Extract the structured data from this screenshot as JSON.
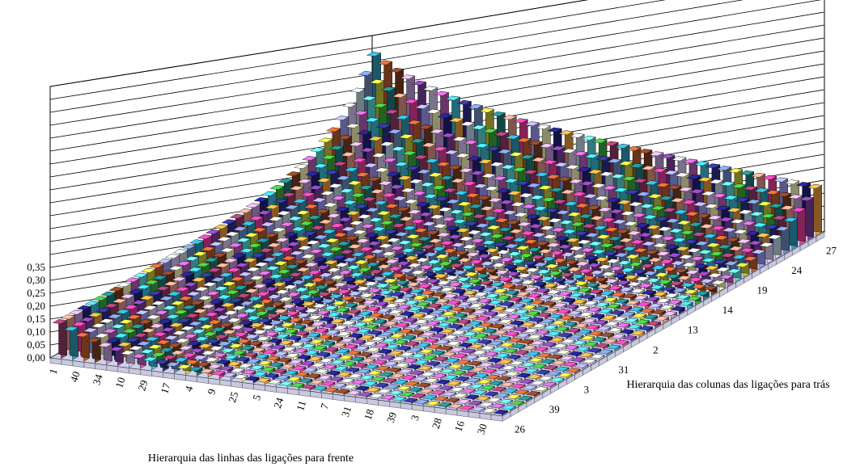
{
  "chart_data": {
    "type": "bar",
    "subtype": "3d-bar-grid",
    "title": "",
    "xlabel": "Hierarquia das linhas das ligações para  frente",
    "ylabel": "Hierarquia das colunas das ligações para trás",
    "zlabel": "",
    "zlim": [
      0,
      0.35
    ],
    "z_ticks": [
      "0,00",
      "0,05",
      "0,10",
      "0,15",
      "0,20",
      "0,25",
      "0,30",
      "0,35"
    ],
    "row_tick_labels": [
      "1",
      "40",
      "34",
      "10",
      "29",
      "17",
      "4",
      "9",
      "25",
      "5",
      "24",
      "11",
      "7",
      "31",
      "18",
      "39",
      "3",
      "28",
      "16",
      "30"
    ],
    "column_tick_labels": [
      "27",
      "24",
      "19",
      "14",
      "13",
      "2",
      "31",
      "3",
      "39",
      "26"
    ],
    "grid": true,
    "num_rows": 40,
    "num_columns": 40,
    "value_model": {
      "description": "bar height approx 0.004 + 0.130*exp(-(row-1)/5.5) + 0.340*exp(-(40-col)/5.5)*exp(-(row-1)/60), values in data units",
      "base": 0.004,
      "row_amplitude": 0.13,
      "col_amplitude": 0.34,
      "decay": 5.5,
      "cross_decay": 60
    },
    "palette": [
      "#9b3a6a",
      "#c8e0f0",
      "#ffffc0",
      "#e89a8a",
      "#7090c8",
      "#c060c0",
      "#c8a0e0",
      "#30a0c0",
      "#60e0e0",
      "#202080",
      "#f040a0",
      "#d0d040",
      "#40c0e0",
      "#8040a0",
      "#c06030",
      "#40b040",
      "#f0a040",
      "#a0a0ff",
      "#208080",
      "#303090",
      "#e0d0ff",
      "#804020"
    ]
  }
}
